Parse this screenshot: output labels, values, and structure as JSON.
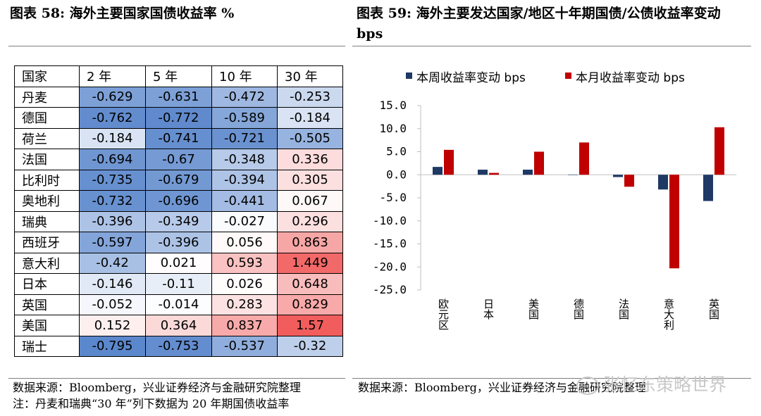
{
  "left_panel": {
    "title": "图表 58:  海外主要国家国债收益率  %",
    "table": {
      "headers": [
        "国家",
        "2 年",
        "5 年",
        "10 年",
        "30 年"
      ],
      "rows": [
        {
          "country": "丹麦",
          "values": [
            "-0.629",
            "-0.631",
            "-0.472",
            "-0.253"
          ]
        },
        {
          "country": "德国",
          "values": [
            "-0.762",
            "-0.772",
            "-0.589",
            "-0.184"
          ]
        },
        {
          "country": "荷兰",
          "values": [
            "-0.184",
            "-0.741",
            "-0.721",
            "-0.505"
          ]
        },
        {
          "country": "法国",
          "values": [
            "-0.694",
            "-0.67",
            "-0.348",
            "0.336"
          ]
        },
        {
          "country": "比利时",
          "values": [
            "-0.735",
            "-0.679",
            "-0.394",
            "0.305"
          ]
        },
        {
          "country": "奥地利",
          "values": [
            "-0.732",
            "-0.696",
            "-0.441",
            "0.067"
          ]
        },
        {
          "country": "瑞典",
          "values": [
            "-0.396",
            "-0.349",
            "-0.027",
            "0.296"
          ]
        },
        {
          "country": "西班牙",
          "values": [
            "-0.597",
            "-0.396",
            "0.056",
            "0.863"
          ]
        },
        {
          "country": "意大利",
          "values": [
            "-0.42",
            "0.021",
            "0.593",
            "1.449"
          ]
        },
        {
          "country": "日本",
          "values": [
            "-0.146",
            "-0.11",
            "0.026",
            "0.648"
          ]
        },
        {
          "country": "英国",
          "values": [
            "-0.052",
            "-0.014",
            "0.283",
            "0.829"
          ]
        },
        {
          "country": "美国",
          "values": [
            "0.152",
            "0.364",
            "0.837",
            "1.57"
          ]
        },
        {
          "country": "瑞士",
          "values": [
            "-0.795",
            "-0.753",
            "-0.537",
            "-0.32"
          ]
        }
      ]
    },
    "source": "数据来源：Bloomberg，兴业证券经济与金融研究院整理",
    "note": "注：丹麦和瑞典“30 年”列下数据为 20 年期国债收益率"
  },
  "right_panel": {
    "title": "图表 59:  海外主要发达国家/地区十年期国债/公债收益率变动  bps",
    "source": "数据来源：Bloomberg，兴业证券经济与金融研究院整理"
  },
  "watermark": "张忆东策略世界",
  "colors": {
    "negative_max": "#5b87cc",
    "neutral": "#ffffff",
    "positive_max": "#f15d5d",
    "series_week": "#1f3864",
    "series_month": "#c00000"
  },
  "chart_data": {
    "type": "bar",
    "categories": [
      "欧元区",
      "日本",
      "美国",
      "德国",
      "法国",
      "意大利",
      "英国"
    ],
    "series": [
      {
        "name": "本周收益率变动 bps",
        "values": [
          1.7,
          1.1,
          1.1,
          0.0,
          -0.5,
          -3.2,
          -5.7
        ]
      },
      {
        "name": "本月收益率变动 bps",
        "values": [
          5.4,
          0.4,
          5.0,
          7.0,
          -2.6,
          -20.3,
          10.3
        ]
      }
    ],
    "yticks": [
      "15.0",
      "10.0",
      "5.0",
      "0.0",
      "-5.0",
      "-10.0",
      "-15.0",
      "-20.0",
      "-25.0"
    ],
    "ylim": [
      -25,
      15
    ],
    "legend_position": "top"
  }
}
